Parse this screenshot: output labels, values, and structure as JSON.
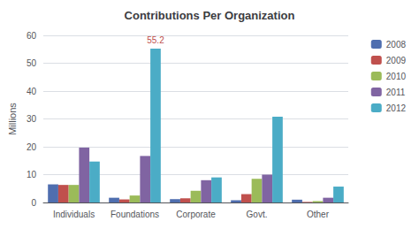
{
  "chart_data": {
    "type": "bar",
    "title": "Contributions Per Organization",
    "ylabel": "Millions",
    "categories": [
      "Individuals",
      "Foundations",
      "Corporate",
      "Govt.",
      "Other"
    ],
    "series": [
      {
        "name": "2008",
        "color": "#4F6EAF",
        "values": [
          6.5,
          1.7,
          1.2,
          0.8,
          1.0
        ]
      },
      {
        "name": "2009",
        "color": "#C0504D",
        "values": [
          6.3,
          1.1,
          1.5,
          3.0,
          0.2
        ]
      },
      {
        "name": "2010",
        "color": "#9BBB59",
        "values": [
          6.3,
          2.5,
          4.2,
          8.5,
          0.5
        ]
      },
      {
        "name": "2011",
        "color": "#8064A2",
        "values": [
          19.7,
          16.7,
          8.0,
          10.0,
          1.7
        ]
      },
      {
        "name": "2012",
        "color": "#4BACC6",
        "values": [
          14.7,
          55.2,
          9.0,
          30.8,
          5.7
        ]
      }
    ],
    "annotations": [
      {
        "text": "55.2",
        "series": "2012",
        "category": "Foundations",
        "color": "#C0504D"
      }
    ],
    "ylim": [
      0,
      60
    ],
    "yticks": [
      0,
      10,
      20,
      30,
      40,
      50,
      60
    ],
    "grid": true,
    "legend": "right"
  }
}
